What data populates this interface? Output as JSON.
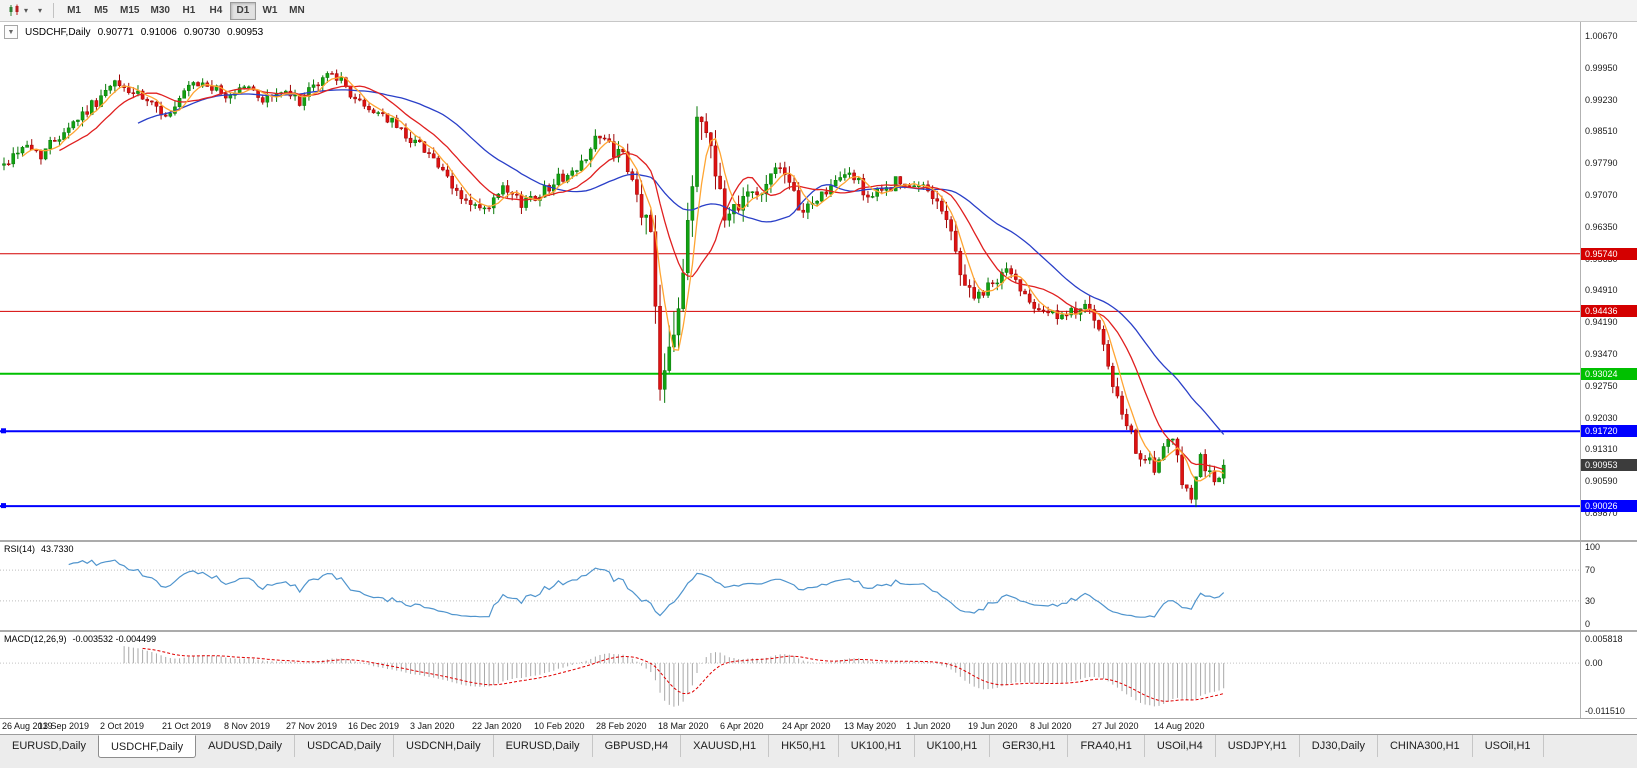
{
  "toolbar": {
    "timeframes": [
      "M1",
      "M5",
      "M15",
      "M30",
      "H1",
      "H4",
      "D1",
      "W1",
      "MN"
    ],
    "active_timeframe": "D1",
    "dropdown_glyph": "▾"
  },
  "chart_header": {
    "collapse_icon": "▼",
    "symbol_label": "USDCHF,Daily",
    "open": "0.90771",
    "high": "0.91006",
    "low": "0.90730",
    "close": "0.90953"
  },
  "price_axis": {
    "labels": [
      "1.00670",
      "0.99950",
      "0.99230",
      "0.98510",
      "0.97790",
      "0.97070",
      "0.96350",
      "0.95630",
      "0.94910",
      "0.94190",
      "0.93470",
      "0.92750",
      "0.92030",
      "0.91310",
      "0.90590",
      "0.89870"
    ]
  },
  "hlines": [
    {
      "label": "0.95740",
      "price": 0.9574,
      "color": "#d40000",
      "width": 1,
      "handles": false
    },
    {
      "label": "0.94436",
      "price": 0.94436,
      "color": "#d40000",
      "width": 1,
      "handles": false
    },
    {
      "label": "0.93024",
      "price": 0.93024,
      "color": "#00c000",
      "width": 2,
      "handles": false
    },
    {
      "label": "0.91720",
      "price": 0.9172,
      "color": "#0000ff",
      "width": 2,
      "handles": true
    },
    {
      "label": "0.90026",
      "price": 0.90026,
      "color": "#0000ff",
      "width": 2,
      "handles": true
    }
  ],
  "current_price": {
    "label": "0.90953",
    "value": 0.90953,
    "color": "#3c3c3c"
  },
  "rsi": {
    "name": "RSI(14)",
    "value": "43.7330",
    "line_color": "#4f94cd",
    "levels": [
      70,
      30
    ],
    "axis": [
      {
        "label": "100",
        "value": 100
      },
      {
        "label": "70",
        "value": 70
      },
      {
        "label": "30",
        "value": 30
      },
      {
        "label": "0",
        "value": 0
      }
    ]
  },
  "macd": {
    "name": "MACD(12,26,9)",
    "values": "-0.003532 -0.004499",
    "histogram_color": "#a8a8a8",
    "signal_color": "#e00000",
    "axis": [
      {
        "label": "0.005818",
        "value": 0.005818
      },
      {
        "label": "0.00",
        "value": 0
      },
      {
        "label": "-0.011510",
        "value": -0.01151
      }
    ]
  },
  "date_axis": {
    "labels": [
      "26 Aug 2019",
      "13 Sep 2019",
      "2 Oct 2019",
      "21 Oct 2019",
      "8 Nov 2019",
      "27 Nov 2019",
      "16 Dec 2019",
      "3 Jan 2020",
      "22 Jan 2020",
      "10 Feb 2020",
      "28 Feb 2020",
      "18 Mar 2020",
      "6 Apr 2020",
      "24 Apr 2020",
      "13 May 2020",
      "1 Jun 2020",
      "19 Jun 2020",
      "8 Jul 2020",
      "27 Jul 2020",
      "14 Aug 2020"
    ]
  },
  "tabs": {
    "active_index": 1,
    "items": [
      "EURUSD,Daily",
      "USDCHF,Daily",
      "AUDUSD,Daily",
      "USDCAD,Daily",
      "USDCNH,Daily",
      "EURUSD,Daily",
      "GBPUSD,H4",
      "XAUUSD,H1",
      "HK50,H1",
      "UK100,H1",
      "UK100,H1",
      "GER30,H1",
      "FRA40,H1",
      "USOil,H4",
      "USDJPY,H1",
      "DJ30,Daily",
      "CHINA300,H1",
      "USOil,H1"
    ]
  },
  "chart_data": {
    "type": "candlestick",
    "symbol": "USDCHF",
    "timeframe": "Daily",
    "bars": 265,
    "last_close": 0.90953,
    "y_top": 1.0067,
    "y_step": 0.0072,
    "up_color": "#12a112",
    "up_stroke": "#077807",
    "down_color": "#de1212",
    "down_stroke": "#9e0505",
    "ma": [
      {
        "name": "ma-slow",
        "period": 30,
        "color": "#2a3fc8"
      },
      {
        "name": "ma-mid",
        "period": 13,
        "color": "#e02020"
      },
      {
        "name": "ma-fast",
        "period": 5,
        "color": "#ffa533"
      }
    ],
    "price_anchors": [
      [
        0,
        0.9775
      ],
      [
        4,
        0.982
      ],
      [
        8,
        0.98
      ],
      [
        13,
        0.9855
      ],
      [
        18,
        0.99
      ],
      [
        24,
        0.9958
      ],
      [
        28,
        0.9938
      ],
      [
        33,
        0.99
      ],
      [
        36,
        0.9888
      ],
      [
        40,
        0.995
      ],
      [
        44,
        0.9958
      ],
      [
        48,
        0.9928
      ],
      [
        52,
        0.9956
      ],
      [
        56,
        0.9924
      ],
      [
        60,
        0.994
      ],
      [
        64,
        0.992
      ],
      [
        68,
        0.9958
      ],
      [
        71,
        0.999
      ],
      [
        74,
        0.9948
      ],
      [
        78,
        0.9904
      ],
      [
        82,
        0.989
      ],
      [
        87,
        0.9842
      ],
      [
        92,
        0.9806
      ],
      [
        97,
        0.9722
      ],
      [
        101,
        0.9684
      ],
      [
        104,
        0.9668
      ],
      [
        108,
        0.9716
      ],
      [
        112,
        0.969
      ],
      [
        116,
        0.9712
      ],
      [
        120,
        0.9744
      ],
      [
        124,
        0.976
      ],
      [
        128,
        0.9838
      ],
      [
        131,
        0.9818
      ],
      [
        134,
        0.9786
      ],
      [
        137,
        0.97
      ],
      [
        140,
        0.9618
      ],
      [
        141,
        0.947
      ],
      [
        142,
        0.929
      ],
      [
        144,
        0.9392
      ],
      [
        146,
        0.9452
      ],
      [
        148,
        0.9612
      ],
      [
        150,
        0.9888
      ],
      [
        152,
        0.9858
      ],
      [
        154,
        0.9778
      ],
      [
        156,
        0.9645
      ],
      [
        158,
        0.9682
      ],
      [
        161,
        0.9724
      ],
      [
        164,
        0.97
      ],
      [
        167,
        0.9784
      ],
      [
        170,
        0.972
      ],
      [
        173,
        0.9668
      ],
      [
        176,
        0.97
      ],
      [
        179,
        0.9724
      ],
      [
        183,
        0.976
      ],
      [
        187,
        0.9704
      ],
      [
        190,
        0.9712
      ],
      [
        193,
        0.9738
      ],
      [
        196,
        0.9718
      ],
      [
        199,
        0.9728
      ],
      [
        202,
        0.97
      ],
      [
        205,
        0.9618
      ],
      [
        208,
        0.9502
      ],
      [
        211,
        0.9472
      ],
      [
        214,
        0.9506
      ],
      [
        217,
        0.9538
      ],
      [
        220,
        0.9498
      ],
      [
        223,
        0.9462
      ],
      [
        226,
        0.9444
      ],
      [
        229,
        0.9424
      ],
      [
        232,
        0.9446
      ],
      [
        234,
        0.9472
      ],
      [
        237,
        0.939
      ],
      [
        239,
        0.9318
      ],
      [
        241,
        0.9238
      ],
      [
        243,
        0.9176
      ],
      [
        245,
        0.9138
      ],
      [
        247,
        0.9106
      ],
      [
        249,
        0.9084
      ],
      [
        251,
        0.9126
      ],
      [
        253,
        0.9152
      ],
      [
        255,
        0.906
      ],
      [
        257,
        0.9032
      ],
      [
        259,
        0.9112
      ],
      [
        261,
        0.907
      ],
      [
        263,
        0.9058
      ],
      [
        264,
        0.9095
      ]
    ],
    "volatility_anchors": [
      [
        0,
        0.003
      ],
      [
        30,
        0.0027
      ],
      [
        60,
        0.0026
      ],
      [
        90,
        0.0026
      ],
      [
        110,
        0.003
      ],
      [
        125,
        0.0028
      ],
      [
        133,
        0.0042
      ],
      [
        138,
        0.0062
      ],
      [
        141,
        0.0095
      ],
      [
        143,
        0.011
      ],
      [
        147,
        0.0085
      ],
      [
        150,
        0.0092
      ],
      [
        154,
        0.0072
      ],
      [
        158,
        0.0055
      ],
      [
        165,
        0.004
      ],
      [
        180,
        0.0028
      ],
      [
        200,
        0.003
      ],
      [
        207,
        0.0046
      ],
      [
        215,
        0.003
      ],
      [
        230,
        0.0028
      ],
      [
        240,
        0.0042
      ],
      [
        248,
        0.0038
      ],
      [
        256,
        0.0036
      ],
      [
        264,
        0.0026
      ]
    ]
  }
}
